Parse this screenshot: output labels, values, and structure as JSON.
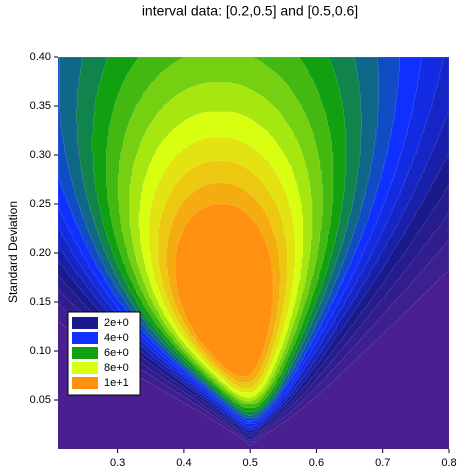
{
  "chart_data": {
    "type": "contour",
    "title": "interval data: [0.2,0.5] and [0.5,0.6]",
    "y_label": "Standard Deviation",
    "intervals": [
      [
        0.2,
        0.5
      ],
      [
        0.5,
        0.6
      ]
    ],
    "xlim": [
      0.21,
      0.8
    ],
    "ylim": [
      0,
      0.4
    ],
    "xticks": [
      0.3,
      0.4,
      0.5,
      0.6,
      0.7,
      0.8
    ],
    "yticks": [
      0.05,
      {
        "value": 0.1,
        "label": "0.10"
      },
      0.15,
      {
        "value": 0.2,
        "label": "0.20"
      },
      0.25,
      {
        "value": 0.3,
        "label": "0.30"
      },
      0.35,
      {
        "value": 0.4,
        "label": "0.40"
      }
    ],
    "background_color": "#4a2090",
    "levels": [
      {
        "value": 2,
        "label": "2e+0",
        "color": "#1a1a8c"
      },
      {
        "value": 4,
        "label": "4e+0",
        "color": "#1030ff"
      },
      {
        "value": 6,
        "label": "6e+0",
        "color": "#10a010"
      },
      {
        "value": 8,
        "label": "8e+0",
        "color": "#d8ff10"
      },
      {
        "value": 10,
        "label": "1e+1",
        "color": "#ff9010"
      }
    ],
    "legend_position": "lower left"
  }
}
